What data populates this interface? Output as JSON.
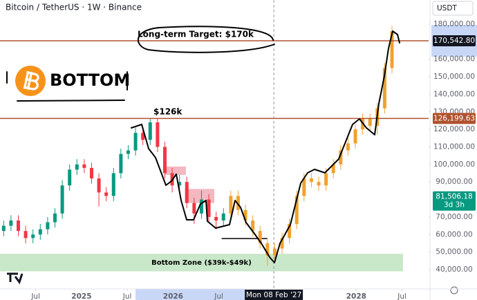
{
  "header": {
    "title": "Bitcoin / TetherUS · 1W · Binance",
    "currency": "USDT"
  },
  "chart_data": {
    "type": "candlestick",
    "xlim": [
      2024.11,
      2028.79
    ],
    "ylim": [
      32100,
      193800
    ],
    "xticks": [
      {
        "value": 2024.5,
        "label": "Jul"
      },
      2025,
      {
        "value": 2025.5,
        "label": "Jul"
      },
      2026,
      {
        "value": 2026.5,
        "label": "Jul"
      },
      2028,
      {
        "value": 2028.5,
        "label": "Jul"
      }
    ],
    "yticks": [
      {
        "value": 40000,
        "label": "40,000.00"
      },
      {
        "value": 50000,
        "label": "50,000.00"
      },
      {
        "value": 60000,
        "label": "60,000.00"
      },
      {
        "value": 70000,
        "label": "70,000.00"
      },
      {
        "value": 90000,
        "label": "90,000.00"
      },
      {
        "value": 100000,
        "label": "100,000.00"
      },
      {
        "value": 110000,
        "label": "110,000.00"
      },
      {
        "value": 120000,
        "label": "120,000.00"
      },
      {
        "value": 130000,
        "label": "130,000.00"
      },
      {
        "value": 140000,
        "label": "140,000.00"
      },
      {
        "value": 150000,
        "label": "150,000.00"
      },
      {
        "value": 160000,
        "label": "160,000.00"
      },
      {
        "value": 180000,
        "label": "180,000.00"
      }
    ],
    "grid": false,
    "series": [
      {
        "color_up": "#089981",
        "color_down": "#f23645",
        "x": [
          2024.15,
          2024.23,
          2024.31,
          2024.39,
          2024.47,
          2024.55,
          2024.63,
          2024.71,
          2024.79,
          2024.87,
          2024.95,
          2025.03,
          2025.11,
          2025.19,
          2025.27,
          2025.35,
          2025.43,
          2025.51,
          2025.59,
          2025.67,
          2025.75,
          2025.83,
          2025.91,
          2025.99,
          2026.07,
          2026.15,
          2026.23,
          2026.31,
          2026.39,
          2026.47,
          2026.55
        ],
        "open": [
          62000,
          65000,
          68000,
          62000,
          58000,
          60000,
          63000,
          67000,
          72000,
          88000,
          97000,
          100000,
          98000,
          92000,
          84000,
          82000,
          95000,
          106000,
          108000,
          118000,
          114000,
          124000,
          110000,
          95000,
          88000,
          90000,
          78000,
          72000,
          80000,
          70000,
          68000
        ],
        "high": [
          68000,
          71000,
          71000,
          65000,
          63000,
          66000,
          70000,
          75000,
          91000,
          100000,
          103000,
          103000,
          101000,
          95000,
          87000,
          98000,
          109000,
          111000,
          121000,
          121000,
          126000,
          126000,
          113000,
          98000,
          94000,
          93000,
          81000,
          85000,
          83000,
          73000,
          75000
        ],
        "low": [
          59000,
          62000,
          59000,
          55000,
          55000,
          57000,
          60000,
          64000,
          69000,
          85000,
          94000,
          95000,
          89000,
          76000,
          79000,
          79000,
          92000,
          103000,
          105000,
          111000,
          111000,
          107000,
          92000,
          84000,
          85000,
          75000,
          66000,
          69000,
          67000,
          63000,
          65000
        ],
        "close": [
          65000,
          68000,
          62000,
          58000,
          60000,
          63000,
          67000,
          72000,
          88000,
          97000,
          100000,
          98000,
          92000,
          84000,
          82000,
          95000,
          106000,
          108000,
          118000,
          114000,
          124000,
          110000,
          95000,
          88000,
          90000,
          78000,
          72000,
          80000,
          70000,
          68000,
          72000
        ]
      },
      {
        "color": "#f0a22e",
        "x": [
          2026.63,
          2026.71,
          2026.79,
          2026.87,
          2026.95,
          2027.03,
          2027.11,
          2027.19,
          2027.27,
          2027.35,
          2027.43,
          2027.51,
          2027.59,
          2027.67,
          2027.75,
          2027.83,
          2027.91,
          2027.99,
          2028.07,
          2028.15,
          2028.23,
          2028.31,
          2028.39
        ],
        "open": [
          72000,
          82000,
          74000,
          68000,
          62000,
          55000,
          48000,
          52000,
          58000,
          66000,
          82000,
          92000,
          90000,
          88000,
          95000,
          100000,
          108000,
          112000,
          120000,
          126000,
          122000,
          132000,
          155000
        ],
        "high": [
          85000,
          85000,
          77000,
          71000,
          65000,
          58000,
          55000,
          61000,
          69000,
          85000,
          95000,
          95000,
          93000,
          98000,
          103000,
          111000,
          115000,
          123000,
          129000,
          129000,
          135000,
          158000,
          179000
        ],
        "low": [
          69000,
          71000,
          65000,
          59000,
          52000,
          42000,
          45000,
          49000,
          55000,
          63000,
          79000,
          87000,
          85000,
          85000,
          92000,
          97000,
          105000,
          109000,
          117000,
          119000,
          117000,
          129000,
          152000
        ],
        "close": [
          82000,
          74000,
          68000,
          62000,
          55000,
          48000,
          52000,
          58000,
          66000,
          82000,
          92000,
          90000,
          88000,
          95000,
          100000,
          108000,
          112000,
          120000,
          126000,
          122000,
          132000,
          155000,
          176000
        ]
      }
    ],
    "price_lines": [
      {
        "value": 170542.8,
        "label": "170,542.80",
        "color": "#b0522d",
        "label_color": "#131722"
      },
      {
        "value": 126199.63,
        "label": "126,199.63",
        "color": "#b0522d",
        "label_color": "#b0522d"
      }
    ],
    "last_price": {
      "value": 81506.18,
      "label": "81,506.18",
      "countdown": "3d 3h",
      "color": "#089981"
    },
    "crosshair": {
      "value": 2027.1,
      "label": "Mon 08 Feb '27"
    },
    "zones": [
      {
        "x": [
          2025.91,
          2026.14
        ],
        "range": [
          94000,
          98800
        ],
        "color": "#f3b8c0"
      },
      {
        "x": [
          2026.13,
          2026.45
        ],
        "range": [
          78000,
          86000
        ],
        "color": "#f3b8c0"
      }
    ],
    "support": {
      "x": [
        2026.53,
        2027.03
      ],
      "value": 57700
    },
    "bottom_zone": {
      "label": "Bottom Zone ($39k-$49k)",
      "x": [
        2024.11,
        2028.51
      ],
      "range": [
        39000,
        49000
      ],
      "color": "#bfe3c0"
    },
    "annotations": {
      "target": "Long-term Target: $170k",
      "ath": "$126k",
      "logo_text": "BOTTOM"
    }
  }
}
